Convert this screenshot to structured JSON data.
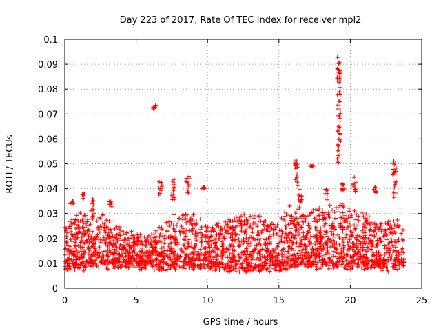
{
  "chart_data": {
    "type": "scatter",
    "title": "Day 223 of 2017, Rate Of TEC Index for receiver mpl2",
    "xlabel": "GPS time / hours",
    "ylabel": "ROTI / TECUs",
    "xlim": [
      0,
      25
    ],
    "ylim": [
      0,
      0.1
    ],
    "xticks": [
      "0",
      "5",
      "10",
      "15",
      "20",
      "25"
    ],
    "yticks": [
      "0",
      "0.01",
      "0.02",
      "0.03",
      "0.04",
      "0.05",
      "0.06",
      "0.07",
      "0.08",
      "0.09",
      "0.1"
    ],
    "grid": true,
    "marker": "+",
    "color": "#ff0000",
    "baseline_profile": {
      "x": [
        0,
        1,
        2,
        3,
        4,
        5,
        6,
        7,
        8,
        9,
        10,
        11,
        12,
        13,
        14,
        15,
        16,
        17,
        18,
        19,
        20,
        21,
        22,
        23,
        23.8
      ],
      "low": [
        0.008,
        0.008,
        0.009,
        0.009,
        0.009,
        0.009,
        0.009,
        0.008,
        0.009,
        0.009,
        0.008,
        0.008,
        0.008,
        0.007,
        0.008,
        0.008,
        0.009,
        0.009,
        0.009,
        0.009,
        0.009,
        0.009,
        0.008,
        0.008,
        0.009
      ],
      "high": [
        0.025,
        0.03,
        0.03,
        0.028,
        0.024,
        0.022,
        0.022,
        0.026,
        0.03,
        0.029,
        0.024,
        0.026,
        0.029,
        0.03,
        0.028,
        0.026,
        0.034,
        0.031,
        0.033,
        0.034,
        0.032,
        0.03,
        0.027,
        0.028,
        0.027
      ]
    },
    "clusters": [
      {
        "x": 0.5,
        "y": [
          0.033,
          0.035
        ]
      },
      {
        "x": 1.3,
        "y": [
          0.036,
          0.038
        ]
      },
      {
        "x": 1.9,
        "y": [
          0.031,
          0.036
        ]
      },
      {
        "x": 3.2,
        "y": [
          0.032,
          0.035
        ]
      },
      {
        "x": 6.3,
        "y": [
          0.072,
          0.074
        ]
      },
      {
        "x": 6.7,
        "y": [
          0.036,
          0.043
        ]
      },
      {
        "x": 7.6,
        "y": [
          0.035,
          0.044
        ]
      },
      {
        "x": 8.6,
        "y": [
          0.038,
          0.045
        ]
      },
      {
        "x": 9.7,
        "y": [
          0.04,
          0.041
        ]
      },
      {
        "x": 16.2,
        "y": [
          0.04,
          0.052
        ]
      },
      {
        "x": 16.5,
        "y": [
          0.034,
          0.04
        ]
      },
      {
        "x": 17.3,
        "y": [
          0.049,
          0.049
        ]
      },
      {
        "x": 18.3,
        "y": [
          0.035,
          0.04
        ]
      },
      {
        "x": 19.2,
        "y": [
          0.05,
          0.093
        ]
      },
      {
        "x": 19.5,
        "y": [
          0.039,
          0.043
        ]
      },
      {
        "x": 20.3,
        "y": [
          0.038,
          0.045
        ]
      },
      {
        "x": 21.7,
        "y": [
          0.038,
          0.041
        ]
      },
      {
        "x": 23.1,
        "y": [
          0.036,
          0.052
        ]
      }
    ]
  }
}
